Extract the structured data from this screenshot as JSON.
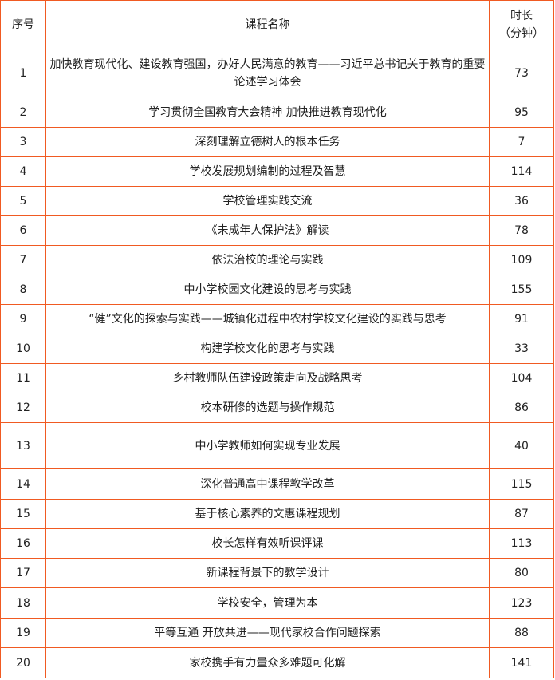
{
  "border_color": "#f05a22",
  "header": {
    "index": "序号",
    "name": "课程名称",
    "duration_line1": "时长",
    "duration_line2": "（分钟）"
  },
  "rows": [
    {
      "no": "1",
      "name": "加快教育现代化、建设教育强国，办好人民满意的教育——习近平总书记关于教育的重要论述学习体会",
      "minutes": "73"
    },
    {
      "no": "2",
      "name": "学习贯彻全国教育大会精神 加快推进教育现代化",
      "minutes": "95"
    },
    {
      "no": "3",
      "name": "深刻理解立德树人的根本任务",
      "minutes": "7"
    },
    {
      "no": "4",
      "name": "学校发展规划编制的过程及智慧",
      "minutes": "114"
    },
    {
      "no": "5",
      "name": "学校管理实践交流",
      "minutes": "36"
    },
    {
      "no": "6",
      "name": "《未成年人保护法》解读",
      "minutes": "78"
    },
    {
      "no": "7",
      "name": "依法治校的理论与实践",
      "minutes": "109"
    },
    {
      "no": "8",
      "name": "中小学校园文化建设的思考与实践",
      "minutes": "155"
    },
    {
      "no": "9",
      "name": "“健”文化的探索与实践——城镇化进程中农村学校文化建设的实践与思考",
      "minutes": "91"
    },
    {
      "no": "10",
      "name": "构建学校文化的思考与实践",
      "minutes": "33"
    },
    {
      "no": "11",
      "name": "乡村教师队伍建设政策走向及战略思考",
      "minutes": "104"
    },
    {
      "no": "12",
      "name": "校本研修的选题与操作规范",
      "minutes": "86"
    },
    {
      "no": "13",
      "name": "中小学教师如何实现专业发展",
      "minutes": "40"
    },
    {
      "no": "14",
      "name": "深化普通高中课程教学改革",
      "minutes": "115"
    },
    {
      "no": "15",
      "name": "基于核心素养的文惠课程规划",
      "minutes": "87"
    },
    {
      "no": "16",
      "name": "校长怎样有效听课评课",
      "minutes": "113"
    },
    {
      "no": "17",
      "name": "新课程背景下的教学设计",
      "minutes": "80"
    },
    {
      "no": "18",
      "name": "学校安全，管理为本",
      "minutes": "123"
    },
    {
      "no": "19",
      "name": "平等互通 开放共进——现代家校合作问题探索",
      "minutes": "88"
    },
    {
      "no": "20",
      "name": "家校携手有力量众多难题可化解",
      "minutes": "141"
    }
  ]
}
